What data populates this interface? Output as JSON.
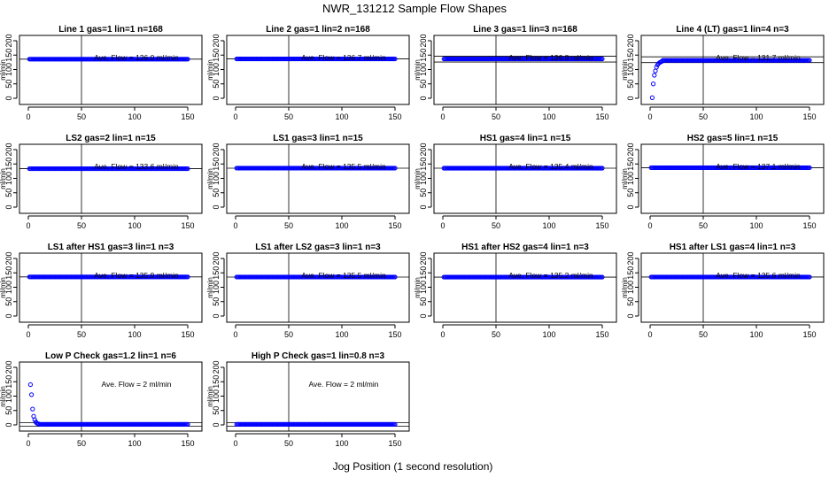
{
  "figure": {
    "title": "NWR_131212  Sample Flow Shapes",
    "xlabel": "Jog Position (1 second resolution)"
  },
  "colors": {
    "points": "#0000ff",
    "axes": "#000000",
    "background": "#ffffff"
  },
  "chart_data": [
    {
      "type": "scatter",
      "title": "Line 1 gas=1 lin=1 n=168",
      "ylabel": "ml/min",
      "annotation": "Ave. Flow =  136.0  ml/min",
      "xlim": [
        0,
        150
      ],
      "ylim": [
        0,
        200
      ],
      "xticks": [
        0,
        50,
        100,
        150
      ],
      "yticks": [
        0,
        50,
        100,
        150,
        200
      ],
      "vline_x": 50,
      "hline_y": [
        136
      ],
      "profile": {
        "kind": "flat",
        "level": 136,
        "x_start": 1,
        "x_end": 150
      }
    },
    {
      "type": "scatter",
      "title": "Line 2 gas=1 lin=2 n=168",
      "ylabel": "ml/min",
      "annotation": "Ave. Flow =  136.7  ml/min",
      "xlim": [
        0,
        150
      ],
      "ylim": [
        0,
        200
      ],
      "xticks": [
        0,
        50,
        100,
        150
      ],
      "yticks": [
        0,
        50,
        100,
        150,
        200
      ],
      "vline_x": 50,
      "hline_y": [
        136.7
      ],
      "profile": {
        "kind": "flat",
        "level": 136.7,
        "x_start": 1,
        "x_end": 150
      }
    },
    {
      "type": "scatter",
      "title": "Line 3 gas=1 lin=3 n=168",
      "ylabel": "ml/min",
      "annotation": "Ave. Flow =  136.8  ml/min",
      "xlim": [
        0,
        150
      ],
      "ylim": [
        0,
        200
      ],
      "xticks": [
        0,
        50,
        100,
        150
      ],
      "yticks": [
        0,
        50,
        100,
        150,
        200
      ],
      "vline_x": 50,
      "hline_y": [
        126,
        146
      ],
      "profile": {
        "kind": "flat",
        "level": 136.8,
        "x_start": 1,
        "x_end": 150
      }
    },
    {
      "type": "scatter",
      "title": "Line 4 (LT) gas=1 lin=4 n=3",
      "ylabel": "ml/min",
      "annotation": "Ave. Flow =  131.7  ml/min",
      "xlim": [
        0,
        150
      ],
      "ylim": [
        0,
        200
      ],
      "xticks": [
        0,
        50,
        100,
        150
      ],
      "yticks": [
        0,
        50,
        100,
        150,
        200
      ],
      "vline_x": 50,
      "hline_y": [
        124,
        144
      ],
      "profile": {
        "kind": "rise",
        "level": 131.7,
        "x_start": 1,
        "x_end": 150,
        "points": [
          [
            2,
            2
          ],
          [
            3,
            50
          ],
          [
            4,
            80
          ],
          [
            5,
            95
          ],
          [
            6,
            108
          ],
          [
            7,
            116
          ],
          [
            8,
            121
          ],
          [
            9,
            124
          ],
          [
            10,
            126
          ],
          [
            11,
            128
          ]
        ]
      }
    },
    {
      "type": "scatter",
      "title": "LS2 gas=2 lin=1 n=15",
      "ylabel": "ml/min",
      "annotation": "Ave. Flow =  133.6  ml/min",
      "xlim": [
        0,
        150
      ],
      "ylim": [
        0,
        200
      ],
      "xticks": [
        0,
        50,
        100,
        150
      ],
      "yticks": [
        0,
        50,
        100,
        150,
        200
      ],
      "vline_x": 50,
      "hline_y": [
        133.6
      ],
      "profile": {
        "kind": "flat",
        "level": 133.6,
        "x_start": 1,
        "x_end": 150
      }
    },
    {
      "type": "scatter",
      "title": "LS1 gas=3 lin=1 n=15",
      "ylabel": "ml/min",
      "annotation": "Ave. Flow =  135.5  ml/min",
      "xlim": [
        0,
        150
      ],
      "ylim": [
        0,
        200
      ],
      "xticks": [
        0,
        50,
        100,
        150
      ],
      "yticks": [
        0,
        50,
        100,
        150,
        200
      ],
      "vline_x": 50,
      "hline_y": [
        135.5
      ],
      "profile": {
        "kind": "flat",
        "level": 135.5,
        "x_start": 1,
        "x_end": 150
      }
    },
    {
      "type": "scatter",
      "title": "HS1 gas=4 lin=1 n=15",
      "ylabel": "ml/min",
      "annotation": "Ave. Flow =  135.4  ml/min",
      "xlim": [
        0,
        150
      ],
      "ylim": [
        0,
        200
      ],
      "xticks": [
        0,
        50,
        100,
        150
      ],
      "yticks": [
        0,
        50,
        100,
        150,
        200
      ],
      "vline_x": 50,
      "hline_y": [
        135.4
      ],
      "profile": {
        "kind": "flat",
        "level": 135.4,
        "x_start": 1,
        "x_end": 150
      }
    },
    {
      "type": "scatter",
      "title": "HS2 gas=5 lin=1 n=15",
      "ylabel": "ml/min",
      "annotation": "Ave. Flow =  137.1  ml/min",
      "xlim": [
        0,
        150
      ],
      "ylim": [
        0,
        200
      ],
      "xticks": [
        0,
        50,
        100,
        150
      ],
      "yticks": [
        0,
        50,
        100,
        150,
        200
      ],
      "vline_x": 50,
      "hline_y": [
        137.1
      ],
      "profile": {
        "kind": "flat",
        "level": 137.1,
        "x_start": 1,
        "x_end": 150
      }
    },
    {
      "type": "scatter",
      "title": "LS1 after HS1 gas=3 lin=1 n=3",
      "ylabel": "ml/min",
      "annotation": "Ave. Flow =  135.9  ml/min",
      "xlim": [
        0,
        150
      ],
      "ylim": [
        0,
        200
      ],
      "xticks": [
        0,
        50,
        100,
        150
      ],
      "yticks": [
        0,
        50,
        100,
        150,
        200
      ],
      "vline_x": 50,
      "hline_y": [
        135.9
      ],
      "profile": {
        "kind": "flat",
        "level": 135.9,
        "x_start": 1,
        "x_end": 150
      }
    },
    {
      "type": "scatter",
      "title": "LS1 after LS2 gas=3 lin=1 n=3",
      "ylabel": "ml/min",
      "annotation": "Ave. Flow =  135.5  ml/min",
      "xlim": [
        0,
        150
      ],
      "ylim": [
        0,
        200
      ],
      "xticks": [
        0,
        50,
        100,
        150
      ],
      "yticks": [
        0,
        50,
        100,
        150,
        200
      ],
      "vline_x": 50,
      "hline_y": [
        135.5
      ],
      "profile": {
        "kind": "flat",
        "level": 135.5,
        "x_start": 1,
        "x_end": 150
      }
    },
    {
      "type": "scatter",
      "title": "HS1 after HS2 gas=4 lin=1 n=3",
      "ylabel": "ml/min",
      "annotation": "Ave. Flow =  135.2  ml/min",
      "xlim": [
        0,
        150
      ],
      "ylim": [
        0,
        200
      ],
      "xticks": [
        0,
        50,
        100,
        150
      ],
      "yticks": [
        0,
        50,
        100,
        150,
        200
      ],
      "vline_x": 50,
      "hline_y": [
        135.2
      ],
      "profile": {
        "kind": "flat",
        "level": 135.2,
        "x_start": 1,
        "x_end": 150
      }
    },
    {
      "type": "scatter",
      "title": "HS1 after LS1 gas=4 lin=1 n=3",
      "ylabel": "ml/min",
      "annotation": "Ave. Flow =  135.6  ml/min",
      "xlim": [
        0,
        150
      ],
      "ylim": [
        0,
        200
      ],
      "xticks": [
        0,
        50,
        100,
        150
      ],
      "yticks": [
        0,
        50,
        100,
        150,
        200
      ],
      "vline_x": 50,
      "hline_y": [
        135.6
      ],
      "profile": {
        "kind": "flat",
        "level": 135.6,
        "x_start": 1,
        "x_end": 150
      }
    },
    {
      "type": "scatter",
      "title": "Low P Check gas=1.2 lin=1 n=6",
      "ylabel": "ml/min",
      "annotation": "Ave. Flow =  2  ml/min",
      "xlim": [
        0,
        150
      ],
      "ylim": [
        0,
        200
      ],
      "xticks": [
        0,
        50,
        100,
        150
      ],
      "yticks": [
        0,
        50,
        100,
        150,
        200
      ],
      "vline_x": 50,
      "hline_y": [
        -5,
        8
      ],
      "profile": {
        "kind": "decay",
        "level": 2,
        "x_start": 1,
        "x_end": 150,
        "points": [
          [
            2,
            140
          ],
          [
            3,
            105
          ],
          [
            4,
            55
          ],
          [
            5,
            30
          ],
          [
            6,
            18
          ],
          [
            7,
            10
          ],
          [
            8,
            6
          ],
          [
            9,
            4
          ],
          [
            10,
            3
          ]
        ]
      }
    },
    {
      "type": "scatter",
      "title": "High P Check gas=1 lin=0.8 n=3",
      "ylabel": "ml/min",
      "annotation": "Ave. Flow =  2  ml/min",
      "xlim": [
        0,
        150
      ],
      "ylim": [
        0,
        200
      ],
      "xticks": [
        0,
        50,
        100,
        150
      ],
      "yticks": [
        0,
        50,
        100,
        150,
        200
      ],
      "vline_x": 50,
      "hline_y": [
        -5,
        8
      ],
      "profile": {
        "kind": "flat",
        "level": 2,
        "x_start": 1,
        "x_end": 150
      }
    }
  ]
}
